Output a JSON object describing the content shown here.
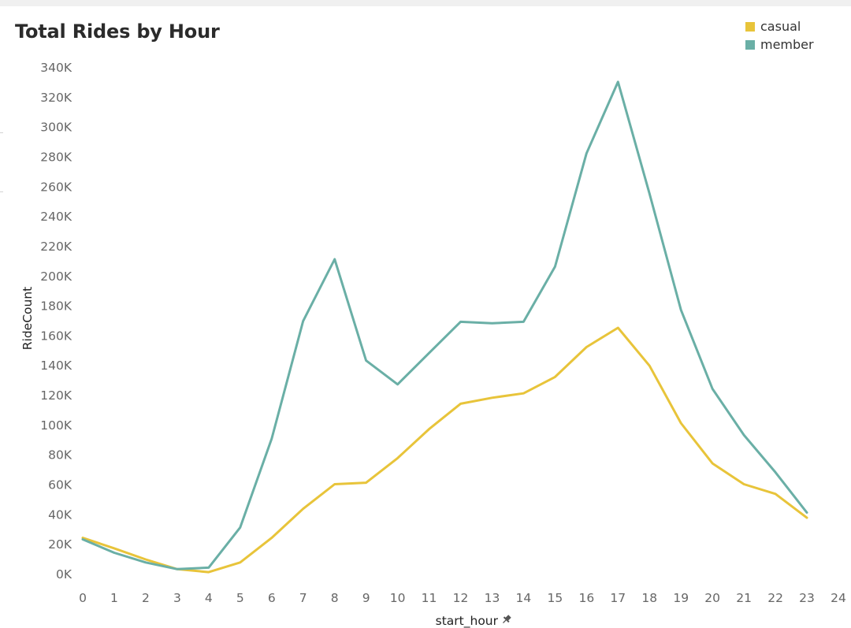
{
  "title": "Total Rides by Hour",
  "legend": {
    "items": [
      {
        "label": "casual",
        "color": "#e8c43a"
      },
      {
        "label": "member",
        "color": "#6aafa6"
      }
    ]
  },
  "chart_data": {
    "type": "line",
    "title": "Total Rides by Hour",
    "xlabel": "start_hour",
    "ylabel": "RideCount",
    "x": [
      0,
      1,
      2,
      3,
      4,
      5,
      6,
      7,
      8,
      9,
      10,
      11,
      12,
      13,
      14,
      15,
      16,
      17,
      18,
      19,
      20,
      21,
      22,
      23
    ],
    "x_ticks": [
      "0",
      "1",
      "2",
      "3",
      "4",
      "5",
      "6",
      "7",
      "8",
      "9",
      "10",
      "11",
      "12",
      "13",
      "14",
      "15",
      "16",
      "17",
      "18",
      "19",
      "20",
      "21",
      "22",
      "23",
      "24"
    ],
    "y_ticks": [
      "0K",
      "20K",
      "40K",
      "60K",
      "80K",
      "100K",
      "120K",
      "140K",
      "160K",
      "180K",
      "200K",
      "220K",
      "240K",
      "260K",
      "280K",
      "300K",
      "320K",
      "340K"
    ],
    "xlim": [
      0,
      24
    ],
    "ylim": [
      0,
      340000
    ],
    "grid": false,
    "legend_position": "top-right",
    "series": [
      {
        "name": "casual",
        "color": "#e8c43a",
        "values": [
          24000,
          17000,
          9500,
          3000,
          1000,
          7500,
          24000,
          43500,
          60000,
          61000,
          77500,
          97000,
          114000,
          118000,
          121000,
          132000,
          152000,
          165000,
          139500,
          101000,
          74000,
          60000,
          53500,
          37500
        ]
      },
      {
        "name": "member",
        "color": "#6aafa6",
        "values": [
          23000,
          14000,
          7500,
          3000,
          4000,
          31000,
          90500,
          169500,
          211000,
          143000,
          127000,
          148000,
          169000,
          168000,
          169000,
          206000,
          282000,
          330000,
          255000,
          177000,
          124000,
          93000,
          68000,
          41000
        ]
      }
    ]
  }
}
